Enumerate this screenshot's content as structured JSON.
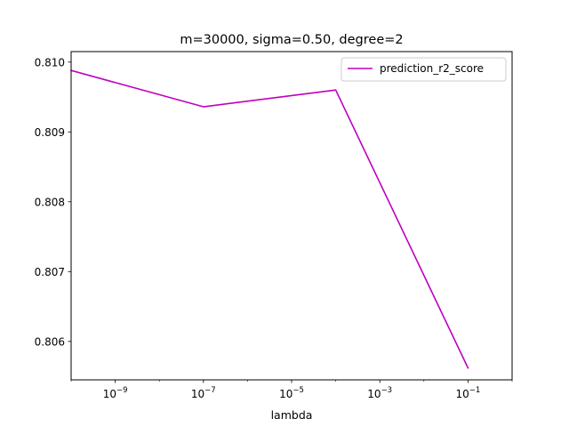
{
  "chart_data": {
    "type": "line",
    "title": "m=30000, sigma=0.50, degree=2",
    "xlabel": "lambda",
    "ylabel": "",
    "xscale": "log",
    "xlim": [
      1e-10,
      1
    ],
    "ylim": [
      0.80545,
      0.81015
    ],
    "x_ticks": [
      {
        "value": 1e-09,
        "base": "10",
        "exp": "−9"
      },
      {
        "value": 1e-07,
        "base": "10",
        "exp": "−7"
      },
      {
        "value": 1e-05,
        "base": "10",
        "exp": "−5"
      },
      {
        "value": 0.001,
        "base": "10",
        "exp": "−3"
      },
      {
        "value": 0.1,
        "base": "10",
        "exp": "−1"
      }
    ],
    "y_ticks": [
      "0.806",
      "0.807",
      "0.808",
      "0.809",
      "0.810"
    ],
    "grid": false,
    "legend": "upper-right",
    "series": [
      {
        "name": "prediction_r2_score",
        "color": "#bf00bf",
        "x": [
          1e-10,
          1e-07,
          0.0001,
          0.1
        ],
        "y": [
          0.80988,
          0.80936,
          0.8096,
          0.80562
        ]
      }
    ]
  }
}
